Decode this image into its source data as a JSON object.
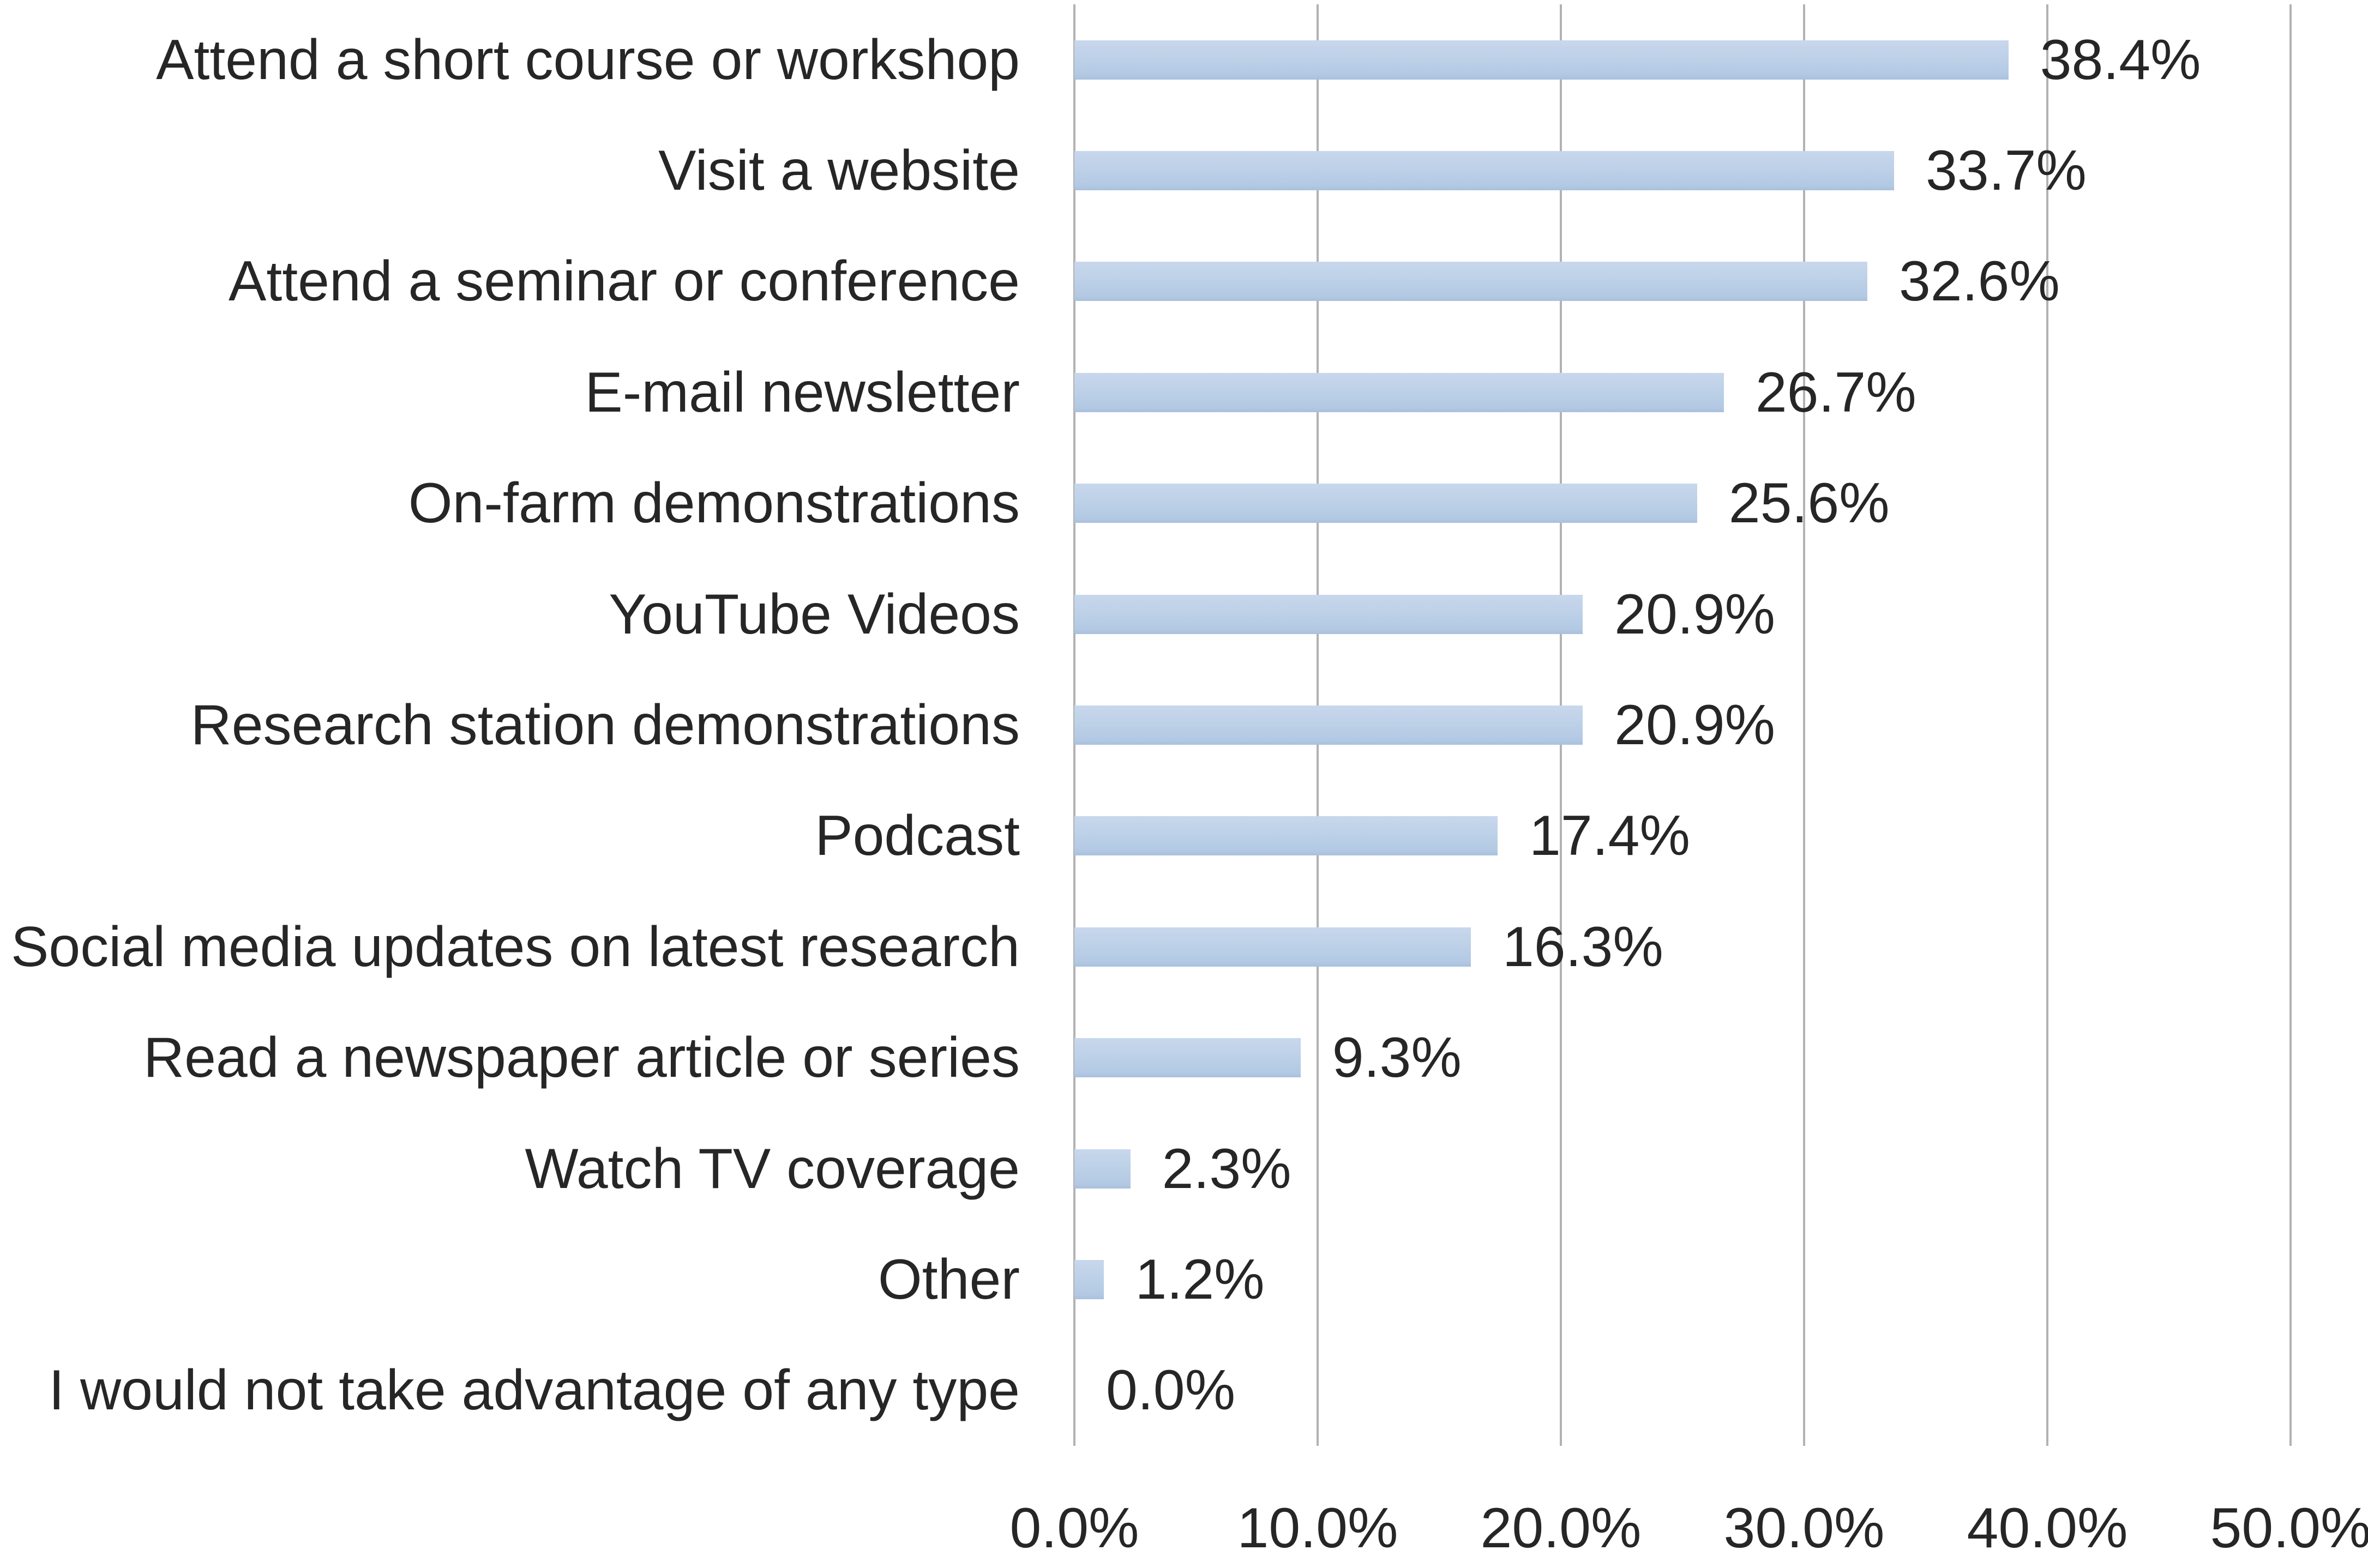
{
  "chart_data": {
    "type": "bar",
    "orientation": "horizontal",
    "title": "",
    "xlabel": "",
    "ylabel": "",
    "legend": "none",
    "grid": "vertical-gridlines-only",
    "categories": [
      "Attend a short course or workshop",
      "Visit a website",
      "Attend a seminar or conference",
      "E-mail newsletter",
      "On-farm demonstrations",
      "YouTube Videos",
      "Research station demonstrations",
      "Podcast",
      "Social media updates on latest research",
      "Read a newspaper article or series",
      "Watch TV coverage",
      "Other",
      "I would not take advantage of any type"
    ],
    "values": [
      38.4,
      33.7,
      32.6,
      26.7,
      25.6,
      20.9,
      20.9,
      17.4,
      16.3,
      9.3,
      2.3,
      1.2,
      0.0
    ],
    "value_labels": [
      "38.4%",
      "33.7%",
      "32.6%",
      "26.7%",
      "25.6%",
      "20.9%",
      "20.9%",
      "17.4%",
      "16.3%",
      "9.3%",
      "2.3%",
      "1.2%",
      "0.0%"
    ],
    "x_axis": {
      "min": 0,
      "max": 50,
      "tick_values": [
        0,
        10,
        20,
        30,
        40,
        50
      ],
      "tick_labels": [
        "0.0%",
        "10.0%",
        "20.0%",
        "30.0%",
        "40.0%",
        "50.0%"
      ]
    },
    "colors": {
      "bar_fill": "#bcd0e8",
      "gridline": "#b2b2b2",
      "text": "#262626",
      "background": "#ffffff"
    }
  }
}
